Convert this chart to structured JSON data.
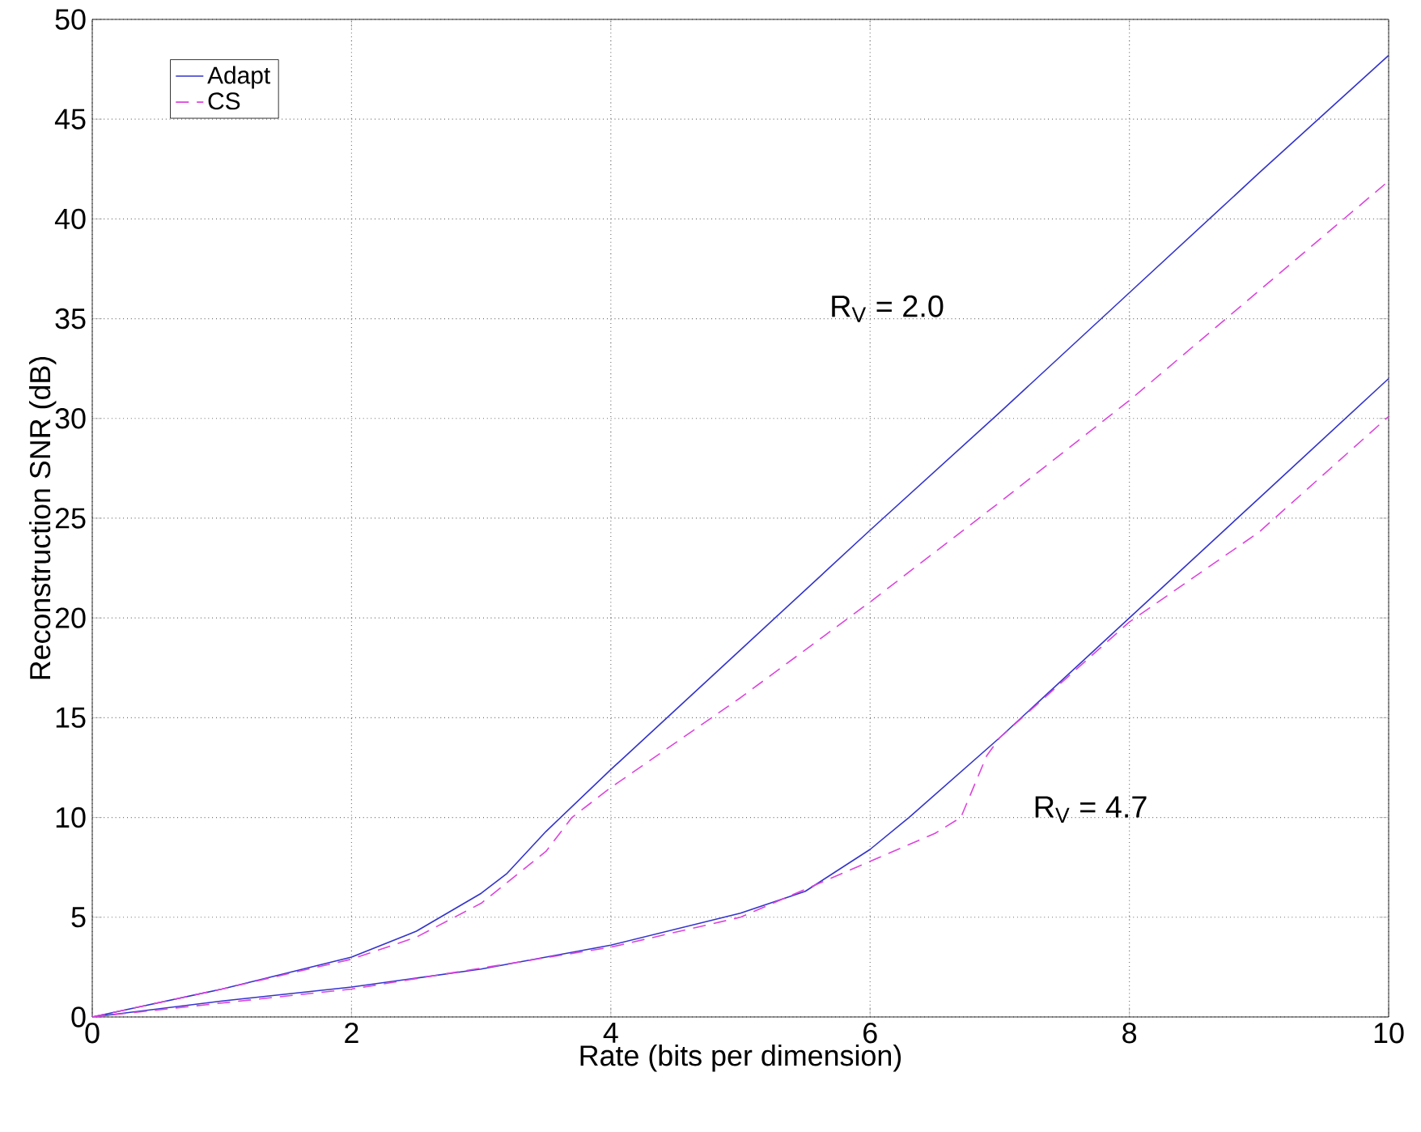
{
  "chart_data": {
    "type": "line",
    "xlabel": "Rate (bits per dimension)",
    "ylabel": "Reconstruction SNR (dB)",
    "xlim": [
      0,
      10
    ],
    "ylim": [
      0,
      50
    ],
    "xticks": [
      0,
      2,
      4,
      6,
      8,
      10
    ],
    "yticks": [
      0,
      5,
      10,
      15,
      20,
      25,
      30,
      35,
      40,
      45,
      50
    ],
    "grid": true,
    "legend": "top left",
    "series": [
      {
        "name": "Adapt",
        "color": "#3333cc",
        "line_style": "solid",
        "x": [
          0,
          1,
          2,
          2.5,
          3,
          3.2,
          3.5,
          4,
          5,
          6,
          7,
          8,
          9,
          10
        ],
        "values": [
          0,
          1.4,
          3.0,
          4.3,
          6.2,
          7.2,
          9.3,
          12.4,
          18.4,
          24.4,
          30.3,
          36.3,
          42.3,
          48.2
        ]
      },
      {
        "name": "CS",
        "color": "#dd44dd",
        "line_style": "dashed",
        "x": [
          0,
          1,
          2,
          2.5,
          3,
          3.5,
          3.7,
          4,
          5,
          6,
          7,
          8,
          9,
          10
        ],
        "values": [
          0,
          1.4,
          2.9,
          4.0,
          5.7,
          8.3,
          10.0,
          11.5,
          16.0,
          20.8,
          25.8,
          30.9,
          36.4,
          41.9
        ]
      },
      {
        "color": "#3333cc",
        "line_style": "solid",
        "x": [
          0,
          1,
          2,
          3,
          4,
          5,
          5.5,
          6,
          6.3,
          7,
          8,
          9,
          10
        ],
        "values": [
          0,
          0.8,
          1.5,
          2.4,
          3.6,
          5.2,
          6.3,
          8.4,
          10.0,
          14.0,
          20.0,
          26.0,
          32.0
        ]
      },
      {
        "color": "#dd44dd",
        "line_style": "dashed",
        "x": [
          0,
          2,
          4,
          5,
          6,
          6.5,
          6.7,
          6.9,
          7,
          8,
          9,
          10
        ],
        "values": [
          0,
          1.4,
          3.5,
          5.0,
          7.8,
          9.2,
          10.0,
          13.1,
          14.0,
          19.8,
          24.3,
          30.1
        ]
      }
    ],
    "annotations": [
      "R$_{V}$ = 2.0",
      "R$_{V}$ = 4.7"
    ]
  }
}
